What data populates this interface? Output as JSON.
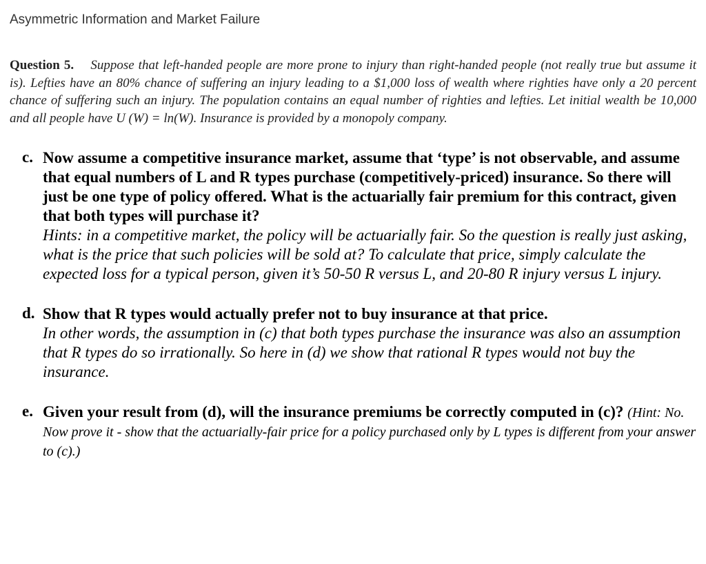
{
  "header": {
    "title": "Asymmetric Information and Market Failure"
  },
  "question": {
    "label": "Question 5.",
    "body": "Suppose that left-handed people are more prone to injury than right-handed people (not really true but assume it is). Lefties have an 80% chance of suffering an injury leading to a $1,000 loss of wealth where righties have only a 20 percent chance of suffering such an injury. The population contains an equal number of righties and lefties. Let initial wealth be 10,000 and all people have U (W) = ln(W). Insurance is provided by a monopoly company."
  },
  "parts": {
    "c": {
      "letter": "c.",
      "q": "Now assume a competitive insurance market, assume that ‘type’ is not observable, and assume that equal numbers of L and R types purchase (competitively-priced) insurance. So there will just be one type of policy offered. What is the actuarially fair premium for this contract, given that both types will purchase it?",
      "hint": "Hints: in a competitive market, the policy will be actuarially fair. So the question is really just asking, what is the price that such policies will be sold at? To calculate that price, simply calculate the expected loss for a typical person, given it’s 50-50 R versus L, and 20-80 R injury versus L injury."
    },
    "d": {
      "letter": "d.",
      "q": "Show that R types would actually prefer not to buy insurance at that price.",
      "hint": "In other words, the assumption in (c) that both types purchase the insurance was also an assumption that R types do so irrationally. So here in (d) we show that rational R types would not buy the insurance."
    },
    "e": {
      "letter": "e.",
      "q": "Given your result from (d), will the insurance premiums be correctly computed in (c)? ",
      "hint": "(Hint: No. Now prove it - show that the actuarially-fair price for a policy purchased only by L types is different from your answer to (c).)"
    }
  }
}
